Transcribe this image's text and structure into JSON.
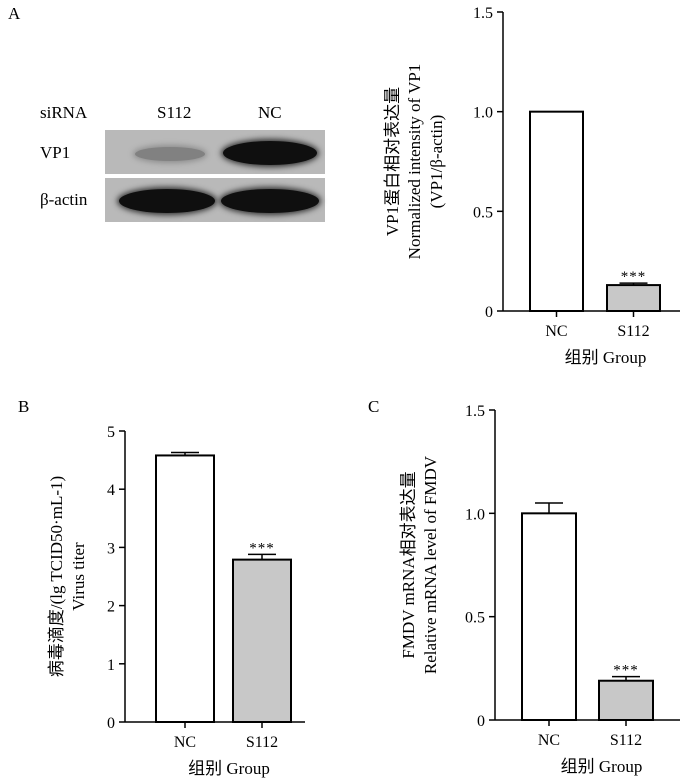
{
  "blot": {
    "panel_label": "A",
    "lane_header": "siRNA",
    "lanes": [
      "S112",
      "NC"
    ],
    "rows": [
      "VP1",
      "β-actin"
    ],
    "band_intensity": {
      "VP1": [
        0.35,
        1.0
      ],
      "β-actin": [
        1.0,
        1.0
      ]
    }
  },
  "chart_data": [
    {
      "id": "A",
      "panel_label": "",
      "type": "bar",
      "categories": [
        "NC",
        "S112"
      ],
      "values": [
        1.0,
        0.13
      ],
      "errors": [
        0,
        0.01
      ],
      "significance": [
        "",
        "***"
      ],
      "bar_colors": [
        "#ffffff",
        "#c8c8c8"
      ],
      "xlabel": "组别 Group",
      "ylabel_lines": [
        "VP1蛋白相对表达量",
        "Normalized intensity of VP1",
        "(VP1/β-actin)"
      ],
      "ylim": [
        0,
        1.5
      ],
      "yticks": [
        "0",
        "0.5",
        "1.0",
        "1.5"
      ],
      "grid": false
    },
    {
      "id": "B",
      "panel_label": "B",
      "type": "bar",
      "categories": [
        "NC",
        "S112"
      ],
      "values": [
        4.58,
        2.79
      ],
      "errors": [
        0.05,
        0.09
      ],
      "significance": [
        "",
        "***"
      ],
      "bar_colors": [
        "#ffffff",
        "#c8c8c8"
      ],
      "xlabel": "组别 Group",
      "ylabel_lines": [
        "病毒滴度/(lg TCID50·mL-1)",
        "Virus titer"
      ],
      "ylim": [
        0,
        5
      ],
      "yticks": [
        "0",
        "1",
        "2",
        "3",
        "4",
        "5"
      ],
      "grid": false
    },
    {
      "id": "C",
      "panel_label": "C",
      "type": "bar",
      "categories": [
        "NC",
        "S112"
      ],
      "values": [
        1.0,
        0.19
      ],
      "errors": [
        0.05,
        0.02
      ],
      "significance": [
        "",
        "***"
      ],
      "bar_colors": [
        "#ffffff",
        "#c8c8c8"
      ],
      "xlabel": "组别 Group",
      "ylabel_lines": [
        "FMDV mRNA相对表达量",
        "Relative mRNA level of FMDV"
      ],
      "ylim": [
        0,
        1.5
      ],
      "yticks": [
        "0",
        "0.5",
        "1.0",
        "1.5"
      ],
      "grid": false
    }
  ]
}
